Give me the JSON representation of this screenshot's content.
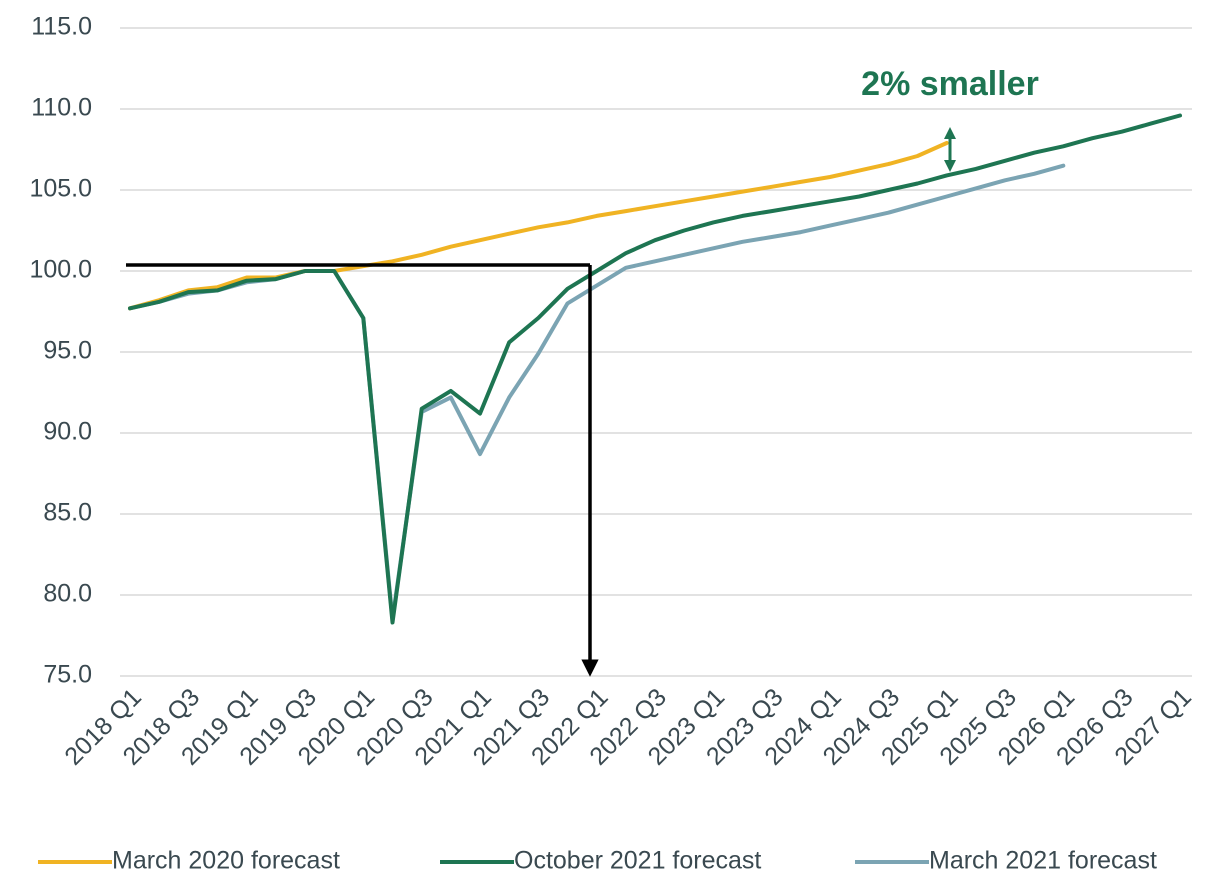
{
  "chart_data": {
    "type": "line",
    "annotation": "2% smaller",
    "categories": [
      "2018 Q1",
      null,
      "2018 Q3",
      null,
      "2019 Q1",
      null,
      "2019 Q3",
      null,
      "2020 Q1",
      null,
      "2020 Q3",
      null,
      "2021 Q1",
      null,
      "2021 Q3",
      null,
      "2022 Q1",
      null,
      "2022 Q3",
      null,
      "2023 Q1",
      null,
      "2023 Q3",
      null,
      "2024 Q1",
      null,
      "2024 Q3",
      null,
      "2025 Q1",
      null,
      "2025 Q3",
      null,
      "2026 Q1",
      null,
      "2026 Q3",
      null,
      "2027 Q1"
    ],
    "series": [
      {
        "name": "March 2020 forecast",
        "color": "#f0b323",
        "values": [
          97.7,
          98.2,
          98.8,
          99.0,
          99.6,
          99.6,
          100.0,
          100.0,
          100.3,
          100.6,
          101.0,
          101.5,
          101.9,
          102.3,
          102.7,
          103.0,
          103.4,
          103.7,
          104.0,
          104.3,
          104.6,
          104.9,
          105.2,
          105.5,
          105.8,
          106.2,
          106.6,
          107.1,
          107.9,
          null,
          null,
          null,
          null,
          null,
          null,
          null,
          null
        ]
      },
      {
        "name": "October 2021 forecast",
        "color": "#1e7552",
        "values": [
          97.7,
          98.1,
          98.7,
          98.8,
          99.4,
          99.5,
          100.0,
          100.0,
          97.1,
          78.3,
          91.5,
          92.6,
          91.2,
          95.6,
          97.1,
          98.9,
          100.0,
          101.1,
          101.9,
          102.5,
          103.0,
          103.4,
          103.7,
          104.0,
          104.3,
          104.6,
          105.0,
          105.4,
          105.9,
          106.3,
          106.8,
          107.3,
          107.7,
          108.2,
          108.6,
          109.1,
          109.6
        ]
      },
      {
        "name": "March 2021 forecast",
        "color": "#7ba4b3",
        "values": [
          97.7,
          98.1,
          98.6,
          98.8,
          99.3,
          99.5,
          100.0,
          100.0,
          97.1,
          78.5,
          91.3,
          92.2,
          88.7,
          92.2,
          94.9,
          98.0,
          99.1,
          100.2,
          100.6,
          101.0,
          101.4,
          101.8,
          102.1,
          102.4,
          102.8,
          103.2,
          103.6,
          104.1,
          104.6,
          105.1,
          105.6,
          106.0,
          106.5,
          null,
          null,
          null,
          null
        ]
      }
    ],
    "ylim": [
      75,
      115
    ],
    "yticks": [
      {
        "value": 75,
        "label": "75.0"
      },
      {
        "value": 80,
        "label": "80.0"
      },
      {
        "value": 85,
        "label": "85.0"
      },
      {
        "value": 90,
        "label": "90.0"
      },
      {
        "value": 95,
        "label": "95.0"
      },
      {
        "value": 100,
        "label": "100.0"
      },
      {
        "value": 105,
        "label": "105.0"
      },
      {
        "value": 110,
        "label": "110.0"
      },
      {
        "value": 115,
        "label": "115.0"
      }
    ],
    "grid": true,
    "legend": "bottom"
  }
}
